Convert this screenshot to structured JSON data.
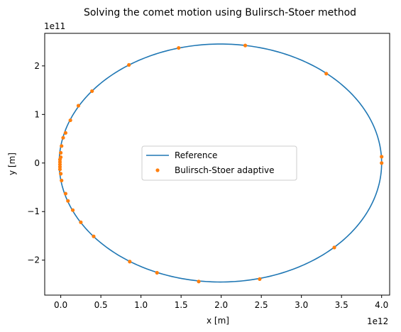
{
  "chart_data": {
    "type": "line",
    "title": "Solving the comet motion using Bulirsch-Stoer method",
    "xlabel": "x [m]",
    "ylabel": "y [m]",
    "x_offset_label": "1e12",
    "y_offset_label": "1e11",
    "xlim": [
      -0.2,
      4.1
    ],
    "ylim": [
      -2.72,
      2.67
    ],
    "x_ticks": [
      0.0,
      0.5,
      1.0,
      1.5,
      2.0,
      2.5,
      3.0,
      3.5,
      4.0
    ],
    "x_tick_labels": [
      "0.0",
      "0.5",
      "1.0",
      "1.5",
      "2.0",
      "2.5",
      "3.0",
      "3.5",
      "4.0"
    ],
    "y_ticks": [
      -2,
      -1,
      0,
      1,
      2
    ],
    "y_tick_labels": [
      "−2",
      "−1",
      "0",
      "1",
      "2"
    ],
    "grid": false,
    "legend_position": "center",
    "series": [
      {
        "name": "Reference",
        "style": "line",
        "color": "#1f77b4",
        "ellipse": {
          "center_x": 1.99,
          "center_y": 0.0,
          "semi_axis_x": 2.01,
          "semi_axis_y": 2.45
        }
      },
      {
        "name": "Bulirsch-Stoer adaptive",
        "style": "markers",
        "color": "#ff7f0e",
        "points": [
          [
            4.0,
            0.0
          ],
          [
            4.0,
            0.13
          ],
          [
            3.31,
            1.84
          ],
          [
            2.3,
            2.42
          ],
          [
            1.47,
            2.37
          ],
          [
            0.85,
            2.02
          ],
          [
            0.39,
            1.48
          ],
          [
            0.22,
            1.18
          ],
          [
            0.12,
            0.88
          ],
          [
            0.06,
            0.62
          ],
          [
            0.03,
            0.52
          ],
          [
            0.01,
            0.35
          ],
          [
            0.0,
            0.21
          ],
          [
            0.0,
            0.12
          ],
          [
            -0.01,
            0.07
          ],
          [
            -0.01,
            0.02
          ],
          [
            -0.01,
            -0.03
          ],
          [
            -0.01,
            -0.08
          ],
          [
            -0.01,
            -0.13
          ],
          [
            0.0,
            -0.22
          ],
          [
            0.01,
            -0.36
          ],
          [
            0.06,
            -0.63
          ],
          [
            0.09,
            -0.78
          ],
          [
            0.15,
            -0.97
          ],
          [
            0.25,
            -1.22
          ],
          [
            0.41,
            -1.51
          ],
          [
            0.86,
            -2.03
          ],
          [
            1.2,
            -2.26
          ],
          [
            1.72,
            -2.44
          ],
          [
            2.48,
            -2.39
          ],
          [
            3.41,
            -1.74
          ]
        ]
      }
    ]
  }
}
